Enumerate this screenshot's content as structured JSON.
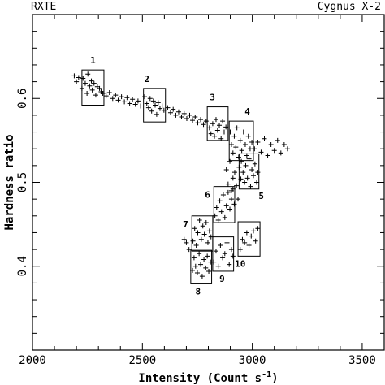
{
  "header": {
    "left": "RXTE",
    "right": "Cygnus X-2"
  },
  "chart_data": {
    "type": "scatter",
    "xlabel": "Intensity (Count s",
    "xlabel_exponent": "-1",
    "xlabel_close": ")",
    "ylabel": "Hardness ratio",
    "xlim": [
      2000,
      3600
    ],
    "ylim": [
      0.3,
      0.7
    ],
    "xticks": [
      2000,
      2500,
      3000,
      3500
    ],
    "yticks": [
      0.4,
      0.5,
      0.6
    ],
    "marker": "+",
    "color": "#000000",
    "boxes": [
      {
        "label": "1",
        "x": [
          2225,
          2325
        ],
        "y": [
          0.592,
          0.634
        ]
      },
      {
        "label": "2",
        "x": [
          2505,
          2605
        ],
        "y": [
          0.572,
          0.612
        ]
      },
      {
        "label": "3",
        "x": [
          2795,
          2890
        ],
        "y": [
          0.55,
          0.59
        ]
      },
      {
        "label": "4",
        "x": [
          2895,
          3005
        ],
        "y": [
          0.526,
          0.573
        ]
      },
      {
        "label": "5",
        "x": [
          2940,
          3030
        ],
        "y": [
          0.492,
          0.534
        ]
      },
      {
        "label": "6",
        "x": [
          2825,
          2920
        ],
        "y": [
          0.452,
          0.495
        ]
      },
      {
        "label": "7",
        "x": [
          2725,
          2820
        ],
        "y": [
          0.418,
          0.46
        ]
      },
      {
        "label": "8",
        "x": [
          2720,
          2815
        ],
        "y": [
          0.379,
          0.419
        ]
      },
      {
        "label": "9",
        "x": [
          2820,
          2915
        ],
        "y": [
          0.394,
          0.435
        ]
      },
      {
        "label": "10",
        "x": [
          2935,
          3035
        ],
        "y": [
          0.412,
          0.453
        ]
      }
    ],
    "series": [
      {
        "points": [
          [
            2190,
            0.627
          ],
          [
            2200,
            0.62
          ],
          [
            2210,
            0.625
          ],
          [
            2225,
            0.612
          ],
          [
            2230,
            0.624
          ],
          [
            2240,
            0.618
          ],
          [
            2248,
            0.606
          ],
          [
            2252,
            0.629
          ],
          [
            2260,
            0.615
          ],
          [
            2268,
            0.621
          ],
          [
            2272,
            0.61
          ],
          [
            2280,
            0.618
          ],
          [
            2288,
            0.604
          ],
          [
            2295,
            0.614
          ],
          [
            2305,
            0.612
          ],
          [
            2312,
            0.608
          ],
          [
            2320,
            0.606
          ],
          [
            2335,
            0.603
          ],
          [
            2350,
            0.607
          ],
          [
            2365,
            0.6
          ],
          [
            2378,
            0.604
          ],
          [
            2390,
            0.598
          ],
          [
            2405,
            0.602
          ],
          [
            2418,
            0.596
          ],
          [
            2430,
            0.601
          ],
          [
            2442,
            0.594
          ],
          [
            2455,
            0.599
          ],
          [
            2468,
            0.593
          ],
          [
            2480,
            0.597
          ],
          [
            2492,
            0.591
          ],
          [
            2510,
            0.602
          ],
          [
            2520,
            0.594
          ],
          [
            2528,
            0.589
          ],
          [
            2535,
            0.6
          ],
          [
            2542,
            0.585
          ],
          [
            2550,
            0.597
          ],
          [
            2558,
            0.592
          ],
          [
            2565,
            0.581
          ],
          [
            2572,
            0.595
          ],
          [
            2580,
            0.588
          ],
          [
            2590,
            0.591
          ],
          [
            2598,
            0.586
          ],
          [
            2615,
            0.589
          ],
          [
            2628,
            0.583
          ],
          [
            2640,
            0.587
          ],
          [
            2652,
            0.58
          ],
          [
            2665,
            0.584
          ],
          [
            2678,
            0.578
          ],
          [
            2690,
            0.582
          ],
          [
            2702,
            0.576
          ],
          [
            2715,
            0.58
          ],
          [
            2728,
            0.574
          ],
          [
            2740,
            0.578
          ],
          [
            2752,
            0.571
          ],
          [
            2765,
            0.575
          ],
          [
            2778,
            0.569
          ],
          [
            2790,
            0.573
          ],
          [
            2805,
            0.565
          ],
          [
            2812,
            0.558
          ],
          [
            2820,
            0.57
          ],
          [
            2828,
            0.555
          ],
          [
            2835,
            0.575
          ],
          [
            2842,
            0.562
          ],
          [
            2850,
            0.568
          ],
          [
            2858,
            0.552
          ],
          [
            2865,
            0.573
          ],
          [
            2872,
            0.56
          ],
          [
            2880,
            0.566
          ],
          [
            2900,
            0.56
          ],
          [
            2905,
            0.545
          ],
          [
            2912,
            0.535
          ],
          [
            2918,
            0.555
          ],
          [
            2925,
            0.542
          ],
          [
            2930,
            0.565
          ],
          [
            2938,
            0.53
          ],
          [
            2945,
            0.55
          ],
          [
            2952,
            0.538
          ],
          [
            2960,
            0.56
          ],
          [
            2968,
            0.545
          ],
          [
            2975,
            0.532
          ],
          [
            2982,
            0.555
          ],
          [
            2990,
            0.54
          ],
          [
            2998,
            0.548
          ],
          [
            3010,
            0.54
          ],
          [
            3025,
            0.548
          ],
          [
            3040,
            0.536
          ],
          [
            3055,
            0.552
          ],
          [
            3070,
            0.532
          ],
          [
            3085,
            0.545
          ],
          [
            3100,
            0.538
          ],
          [
            3115,
            0.55
          ],
          [
            3130,
            0.535
          ],
          [
            3145,
            0.545
          ],
          [
            3160,
            0.54
          ],
          [
            2950,
            0.525
          ],
          [
            2958,
            0.512
          ],
          [
            2965,
            0.5
          ],
          [
            2970,
            0.52
          ],
          [
            2978,
            0.505
          ],
          [
            2985,
            0.528
          ],
          [
            2992,
            0.495
          ],
          [
            2998,
            0.515
          ],
          [
            3005,
            0.508
          ],
          [
            3012,
            0.522
          ],
          [
            3020,
            0.5
          ],
          [
            3025,
            0.512
          ],
          [
            2940,
            0.518
          ],
          [
            2948,
            0.504
          ],
          [
            2882,
            0.515
          ],
          [
            2890,
            0.498
          ],
          [
            2898,
            0.525
          ],
          [
            2905,
            0.49
          ],
          [
            2912,
            0.505
          ],
          [
            2920,
            0.512
          ],
          [
            2928,
            0.496
          ],
          [
            2935,
            0.48
          ],
          [
            2830,
            0.46
          ],
          [
            2838,
            0.47
          ],
          [
            2845,
            0.455
          ],
          [
            2852,
            0.478
          ],
          [
            2860,
            0.465
          ],
          [
            2868,
            0.485
          ],
          [
            2875,
            0.458
          ],
          [
            2882,
            0.472
          ],
          [
            2890,
            0.488
          ],
          [
            2898,
            0.468
          ],
          [
            2905,
            0.48
          ],
          [
            2912,
            0.492
          ],
          [
            2918,
            0.474
          ],
          [
            2730,
            0.43
          ],
          [
            2738,
            0.445
          ],
          [
            2745,
            0.425
          ],
          [
            2752,
            0.44
          ],
          [
            2760,
            0.455
          ],
          [
            2768,
            0.432
          ],
          [
            2775,
            0.448
          ],
          [
            2782,
            0.438
          ],
          [
            2790,
            0.452
          ],
          [
            2798,
            0.428
          ],
          [
            2805,
            0.442
          ],
          [
            2812,
            0.435
          ],
          [
            2700,
            0.428
          ],
          [
            2712,
            0.42
          ],
          [
            2690,
            0.432
          ],
          [
            2728,
            0.395
          ],
          [
            2735,
            0.41
          ],
          [
            2742,
            0.4
          ],
          [
            2750,
            0.392
          ],
          [
            2758,
            0.415
          ],
          [
            2765,
            0.402
          ],
          [
            2772,
            0.388
          ],
          [
            2780,
            0.408
          ],
          [
            2788,
            0.398
          ],
          [
            2795,
            0.412
          ],
          [
            2802,
            0.394
          ],
          [
            2810,
            0.405
          ],
          [
            2825,
            0.405
          ],
          [
            2835,
            0.418
          ],
          [
            2845,
            0.4
          ],
          [
            2855,
            0.425
          ],
          [
            2865,
            0.41
          ],
          [
            2875,
            0.415
          ],
          [
            2885,
            0.428
          ],
          [
            2895,
            0.402
          ],
          [
            2905,
            0.42
          ],
          [
            2912,
            0.412
          ],
          [
            2945,
            0.42
          ],
          [
            2955,
            0.432
          ],
          [
            2965,
            0.428
          ],
          [
            2975,
            0.44
          ],
          [
            2985,
            0.425
          ],
          [
            2995,
            0.436
          ],
          [
            3005,
            0.442
          ],
          [
            3015,
            0.43
          ],
          [
            3025,
            0.445
          ]
        ]
      }
    ]
  }
}
